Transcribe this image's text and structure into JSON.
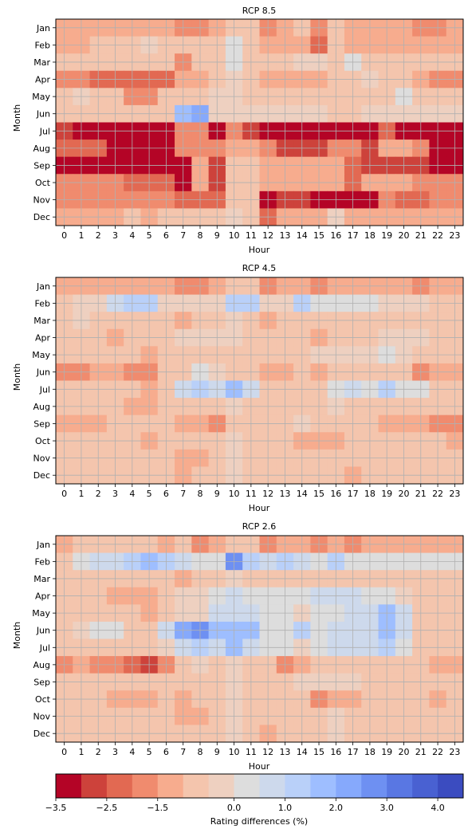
{
  "chart_data": [
    {
      "type": "heatmap",
      "title": "RCP 8.5",
      "xlabel": "Hour",
      "ylabel": "Month",
      "x": [
        "0",
        "1",
        "2",
        "3",
        "4",
        "5",
        "6",
        "7",
        "8",
        "9",
        "10",
        "11",
        "12",
        "13",
        "14",
        "15",
        "16",
        "17",
        "18",
        "19",
        "20",
        "21",
        "22",
        "23"
      ],
      "y": [
        "Jan",
        "Feb",
        "Mar",
        "Apr",
        "May",
        "Jun",
        "Jul",
        "Aug",
        "Sep",
        "Oct",
        "Nov",
        "Dec"
      ],
      "grid": true,
      "values": [
        [
          -1.5,
          -1.5,
          -1.5,
          -1.5,
          -1.5,
          -1.5,
          -1.5,
          -2.0,
          -2.0,
          -1.5,
          -1.0,
          -1.0,
          -2.0,
          -1.5,
          -1.0,
          -2.0,
          -1.0,
          -1.5,
          -1.5,
          -1.5,
          -1.5,
          -2.0,
          -2.0,
          -1.5
        ],
        [
          -1.5,
          -1.5,
          -1.0,
          -1.0,
          -1.0,
          -0.5,
          -1.0,
          -1.0,
          -1.0,
          -1.0,
          0.0,
          -1.0,
          -1.5,
          -1.5,
          -1.5,
          -2.5,
          -1.0,
          -1.5,
          -1.5,
          -1.5,
          -1.5,
          -1.5,
          -1.5,
          -1.5
        ],
        [
          -1.0,
          -1.0,
          -1.0,
          -1.0,
          -1.0,
          -1.0,
          -1.0,
          -2.0,
          -1.0,
          -1.0,
          0.0,
          -1.0,
          -1.0,
          -1.0,
          -0.5,
          -0.5,
          -1.0,
          0.0,
          -1.0,
          -1.0,
          -1.0,
          -1.0,
          -1.0,
          -1.0
        ],
        [
          -2.0,
          -2.0,
          -2.5,
          -2.5,
          -2.5,
          -2.5,
          -2.5,
          -1.5,
          -1.5,
          -1.0,
          -0.5,
          -1.0,
          -1.5,
          -1.5,
          -1.5,
          -1.5,
          -1.0,
          -1.0,
          -0.5,
          -1.0,
          -1.0,
          -1.5,
          -2.0,
          -2.0
        ],
        [
          -1.0,
          -0.5,
          -1.0,
          -1.0,
          -2.0,
          -2.0,
          -1.0,
          -1.0,
          -1.0,
          -0.5,
          -0.5,
          -1.0,
          -1.0,
          -1.0,
          -1.0,
          -1.0,
          -1.0,
          -1.0,
          -1.0,
          -1.0,
          0.0,
          -1.0,
          -1.0,
          -1.0
        ],
        [
          -1.0,
          -1.0,
          -1.0,
          -1.0,
          -1.0,
          -1.0,
          -1.0,
          1.5,
          2.0,
          -0.5,
          -0.5,
          -0.5,
          -0.5,
          -0.5,
          -0.5,
          -0.5,
          -1.0,
          -1.0,
          -0.5,
          -0.5,
          -0.5,
          -0.5,
          -0.5,
          -0.5
        ],
        [
          -3.0,
          -3.5,
          -3.5,
          -3.5,
          -3.5,
          -3.5,
          -3.5,
          -2.0,
          -2.0,
          -3.5,
          -2.0,
          -3.0,
          -3.5,
          -3.5,
          -3.5,
          -3.5,
          -3.5,
          -3.5,
          -3.5,
          -2.5,
          -3.5,
          -3.5,
          -3.5,
          -3.5
        ],
        [
          -2.5,
          -2.5,
          -2.5,
          -3.5,
          -3.5,
          -3.5,
          -3.5,
          -2.0,
          -2.0,
          -2.0,
          -1.5,
          -1.5,
          -2.0,
          -3.0,
          -3.0,
          -3.0,
          -2.0,
          -2.0,
          -3.0,
          -1.5,
          -1.5,
          -2.0,
          -3.5,
          -3.5
        ],
        [
          -3.5,
          -3.5,
          -3.5,
          -3.5,
          -3.5,
          -3.5,
          -3.5,
          -3.5,
          -1.5,
          -3.0,
          -1.0,
          -1.0,
          -1.5,
          -1.5,
          -1.5,
          -1.5,
          -1.5,
          -2.5,
          -3.0,
          -3.0,
          -3.0,
          -3.0,
          -3.5,
          -3.5
        ],
        [
          -2.0,
          -2.0,
          -2.0,
          -2.0,
          -2.5,
          -2.5,
          -2.5,
          -3.5,
          -1.5,
          -3.0,
          -1.0,
          -1.0,
          -1.5,
          -1.5,
          -1.5,
          -1.5,
          -1.5,
          -2.5,
          -1.5,
          -1.5,
          -1.5,
          -2.0,
          -2.0,
          -2.0
        ],
        [
          -2.0,
          -2.0,
          -2.0,
          -2.0,
          -2.0,
          -2.0,
          -2.0,
          -2.5,
          -2.5,
          -2.5,
          -1.0,
          -1.0,
          -3.5,
          -3.0,
          -3.0,
          -3.5,
          -3.5,
          -3.5,
          -3.5,
          -2.0,
          -2.5,
          -2.5,
          -2.0,
          -2.0
        ],
        [
          -1.5,
          -1.5,
          -1.5,
          -1.5,
          -1.0,
          -1.5,
          -1.0,
          -1.0,
          -1.0,
          -1.0,
          -0.5,
          -1.0,
          -2.5,
          -1.5,
          -1.5,
          -1.5,
          -0.5,
          -1.5,
          -1.5,
          -1.5,
          -1.5,
          -1.5,
          -1.5,
          -1.5
        ]
      ]
    },
    {
      "type": "heatmap",
      "title": "RCP 4.5",
      "xlabel": "Hour",
      "ylabel": "Month",
      "x": [
        "0",
        "1",
        "2",
        "3",
        "4",
        "5",
        "6",
        "7",
        "8",
        "9",
        "10",
        "11",
        "12",
        "13",
        "14",
        "15",
        "16",
        "17",
        "18",
        "19",
        "20",
        "21",
        "22",
        "23"
      ],
      "y": [
        "Jan",
        "Feb",
        "Mar",
        "Apr",
        "May",
        "Jun",
        "Jul",
        "Aug",
        "Sep",
        "Oct",
        "Nov",
        "Dec"
      ],
      "grid": true,
      "values": [
        [
          -1.5,
          -1.5,
          -1.5,
          -1.5,
          -1.5,
          -1.5,
          -1.5,
          -2.0,
          -2.0,
          -1.5,
          -1.0,
          -1.0,
          -2.0,
          -1.5,
          -1.5,
          -2.0,
          -1.5,
          -1.5,
          -1.5,
          -1.5,
          -1.5,
          -2.0,
          -1.5,
          -1.5
        ],
        [
          -1.0,
          -0.5,
          -0.5,
          0.5,
          1.0,
          1.0,
          -0.5,
          -0.5,
          -0.5,
          -0.5,
          1.0,
          1.0,
          -0.5,
          -0.5,
          1.0,
          0.0,
          0.0,
          0.0,
          0.0,
          -0.5,
          -0.5,
          -0.5,
          -1.0,
          -1.0
        ],
        [
          -1.0,
          -0.5,
          -1.0,
          -1.0,
          -1.0,
          -1.0,
          -1.0,
          -1.5,
          -1.0,
          -1.0,
          -0.5,
          -1.0,
          -1.5,
          -1.0,
          -1.0,
          -1.0,
          -1.0,
          -1.0,
          -1.0,
          -1.0,
          -1.0,
          -1.0,
          -1.0,
          -1.0
        ],
        [
          -1.0,
          -1.0,
          -1.0,
          -1.5,
          -1.0,
          -1.0,
          -1.0,
          -0.5,
          -0.5,
          -0.5,
          -0.5,
          -1.0,
          -1.0,
          -1.0,
          -1.0,
          -1.5,
          -1.0,
          -1.0,
          -1.0,
          -0.5,
          -0.5,
          -0.5,
          -1.0,
          -1.0
        ],
        [
          -1.0,
          -1.0,
          -1.0,
          -1.0,
          -1.0,
          -1.5,
          -1.0,
          -1.0,
          -1.0,
          -1.0,
          -1.0,
          -1.0,
          -1.0,
          -1.0,
          -1.0,
          -0.5,
          -0.5,
          -0.5,
          -0.5,
          0.0,
          -0.5,
          -1.0,
          -1.0,
          -1.0
        ],
        [
          -2.0,
          -2.0,
          -1.5,
          -1.5,
          -2.0,
          -2.0,
          -1.0,
          -1.0,
          0.0,
          -0.5,
          -1.0,
          -1.0,
          -1.5,
          -1.5,
          -1.0,
          -1.5,
          -1.0,
          -1.0,
          -1.0,
          -1.0,
          -1.0,
          -2.0,
          -1.5,
          -1.5
        ],
        [
          -1.0,
          -1.0,
          -1.0,
          -1.0,
          -1.0,
          -1.5,
          -1.0,
          0.5,
          1.0,
          0.5,
          1.5,
          0.5,
          -1.0,
          -1.0,
          -1.0,
          -1.0,
          0.0,
          0.5,
          0.0,
          1.0,
          0.0,
          0.0,
          -1.0,
          -1.0
        ],
        [
          -1.0,
          -1.0,
          -1.0,
          -1.0,
          -1.5,
          -1.5,
          -1.0,
          -1.0,
          -1.0,
          -1.0,
          -0.5,
          -1.0,
          -1.0,
          -1.0,
          -1.0,
          -1.0,
          -0.5,
          -1.0,
          -1.0,
          -1.0,
          -1.0,
          -1.0,
          -1.0,
          -1.0
        ],
        [
          -1.5,
          -1.5,
          -1.5,
          -1.0,
          -1.0,
          -1.0,
          -1.0,
          -1.5,
          -1.5,
          -2.0,
          -1.0,
          -1.0,
          -1.0,
          -1.0,
          -0.5,
          -1.0,
          -1.0,
          -1.0,
          -1.0,
          -1.5,
          -1.5,
          -1.5,
          -2.0,
          -2.0
        ],
        [
          -1.0,
          -1.0,
          -1.0,
          -1.0,
          -1.0,
          -1.5,
          -1.0,
          -1.0,
          -1.0,
          -1.0,
          -0.5,
          -1.0,
          -1.0,
          -1.0,
          -1.5,
          -1.5,
          -1.5,
          -1.0,
          -1.0,
          -1.0,
          -1.0,
          -1.0,
          -1.0,
          -1.5
        ],
        [
          -1.0,
          -1.0,
          -1.0,
          -1.0,
          -1.0,
          -1.0,
          -1.0,
          -1.5,
          -1.5,
          -1.0,
          -0.5,
          -1.0,
          -1.0,
          -1.0,
          -1.0,
          -1.0,
          -1.0,
          -1.0,
          -1.0,
          -1.0,
          -1.0,
          -1.0,
          -1.0,
          -1.0
        ],
        [
          -1.0,
          -1.0,
          -1.0,
          -1.0,
          -1.0,
          -1.0,
          -1.0,
          -1.5,
          -1.0,
          -1.0,
          -0.5,
          -1.0,
          -1.0,
          -1.0,
          -1.0,
          -1.0,
          -1.0,
          -1.5,
          -1.0,
          -1.0,
          -1.0,
          -1.0,
          -1.0,
          -1.0
        ]
      ]
    },
    {
      "type": "heatmap",
      "title": "RCP 2.6",
      "xlabel": "Hour",
      "ylabel": "Month",
      "x": [
        "0",
        "1",
        "2",
        "3",
        "4",
        "5",
        "6",
        "7",
        "8",
        "9",
        "10",
        "11",
        "12",
        "13",
        "14",
        "15",
        "16",
        "17",
        "18",
        "19",
        "20",
        "21",
        "22",
        "23"
      ],
      "y": [
        "Jan",
        "Feb",
        "Mar",
        "Apr",
        "May",
        "Jun",
        "Jul",
        "Aug",
        "Sep",
        "Oct",
        "Nov",
        "Dec"
      ],
      "grid": true,
      "values": [
        [
          -1.5,
          -1.0,
          -1.0,
          -1.0,
          -1.0,
          -1.0,
          -1.5,
          -1.0,
          -2.0,
          -1.5,
          -1.0,
          -1.0,
          -2.0,
          -1.5,
          -1.5,
          -2.0,
          -1.5,
          -2.0,
          -1.5,
          -1.5,
          -1.5,
          -1.5,
          -1.5,
          -1.5
        ],
        [
          -1.0,
          0.0,
          0.5,
          0.5,
          1.0,
          1.5,
          1.0,
          0.5,
          0.0,
          0.0,
          2.5,
          1.0,
          0.5,
          1.0,
          0.5,
          0.0,
          1.0,
          0.0,
          0.0,
          0.0,
          0.0,
          0.0,
          0.0,
          0.0
        ],
        [
          -1.0,
          -1.0,
          -1.0,
          -1.0,
          -1.0,
          -1.0,
          -1.0,
          -1.5,
          -1.0,
          -1.0,
          -0.5,
          -1.0,
          -1.0,
          -1.0,
          -1.0,
          -1.0,
          -1.0,
          -1.0,
          -1.0,
          -1.0,
          -1.0,
          -1.0,
          -1.0,
          -1.0
        ],
        [
          -1.0,
          -1.0,
          -1.0,
          -1.5,
          -1.5,
          -1.5,
          -1.0,
          -0.5,
          -0.5,
          0.0,
          0.5,
          0.0,
          0.0,
          0.0,
          0.0,
          0.5,
          0.5,
          0.5,
          0.0,
          0.0,
          -0.5,
          -1.0,
          -1.0,
          -1.0
        ],
        [
          -1.0,
          -1.0,
          -1.0,
          -1.0,
          -1.0,
          -1.5,
          -1.0,
          -0.5,
          -0.5,
          0.5,
          0.5,
          0.5,
          0.0,
          0.0,
          -0.5,
          0.0,
          0.0,
          0.5,
          0.5,
          1.5,
          0.5,
          -1.0,
          -1.0,
          -1.0
        ],
        [
          -1.0,
          -0.5,
          0.0,
          0.0,
          -1.0,
          -1.0,
          0.5,
          2.0,
          2.5,
          1.5,
          1.5,
          1.5,
          0.0,
          0.0,
          1.0,
          0.0,
          0.5,
          0.5,
          0.5,
          1.5,
          0.5,
          -1.0,
          -1.0,
          -1.0
        ],
        [
          -1.0,
          -1.0,
          -1.0,
          -1.0,
          -1.0,
          -1.0,
          -0.5,
          0.5,
          1.0,
          0.5,
          1.5,
          0.5,
          0.0,
          0.0,
          -0.5,
          0.0,
          0.5,
          0.5,
          0.5,
          1.0,
          0.0,
          -1.0,
          -1.0,
          -1.0
        ],
        [
          -2.0,
          -1.5,
          -2.0,
          -2.0,
          -2.5,
          -3.0,
          -2.0,
          -1.0,
          -0.5,
          -1.0,
          -0.5,
          -1.0,
          -1.0,
          -2.0,
          -1.5,
          -1.0,
          -1.0,
          -1.0,
          -1.0,
          -1.0,
          -1.0,
          -1.0,
          -1.5,
          -1.5
        ],
        [
          -1.0,
          -1.0,
          -1.0,
          -1.0,
          -1.0,
          -1.0,
          -1.0,
          -1.0,
          -1.0,
          -1.0,
          -0.5,
          -1.0,
          -1.0,
          -1.0,
          -0.5,
          -0.5,
          -0.5,
          -0.5,
          -1.0,
          -1.0,
          -1.0,
          -1.0,
          -1.0,
          -1.0
        ],
        [
          -1.0,
          -1.0,
          -1.0,
          -1.5,
          -1.5,
          -1.5,
          -1.0,
          -1.5,
          -1.0,
          -1.0,
          -0.5,
          -1.0,
          -1.0,
          -1.0,
          -1.0,
          -2.0,
          -1.5,
          -1.5,
          -1.0,
          -1.0,
          -1.0,
          -1.0,
          -1.5,
          -1.0
        ],
        [
          -1.0,
          -1.0,
          -1.0,
          -1.0,
          -1.0,
          -1.0,
          -1.0,
          -1.5,
          -1.5,
          -1.0,
          -0.5,
          -1.0,
          -1.0,
          -1.0,
          -1.0,
          -1.0,
          -0.5,
          -1.0,
          -1.0,
          -1.0,
          -1.0,
          -1.0,
          -1.0,
          -1.0
        ],
        [
          -1.0,
          -1.0,
          -1.0,
          -1.0,
          -1.0,
          -1.0,
          -1.0,
          -1.0,
          -1.0,
          -1.0,
          -0.5,
          -1.0,
          -1.5,
          -1.0,
          -1.0,
          -1.0,
          -0.5,
          -1.0,
          -1.0,
          -1.0,
          -1.0,
          -1.0,
          -1.0,
          -1.0
        ]
      ]
    }
  ],
  "colorbar": {
    "label": "Rating differences (%)",
    "range": [
      -3.5,
      4.5
    ],
    "step": 0.5,
    "ticks": [
      "−3.5",
      "−2.5",
      "−1.5",
      "0.0",
      "1.0",
      "2.0",
      "3.0",
      "4.0"
    ],
    "tick_values": [
      -3.5,
      -2.5,
      -1.5,
      0.0,
      1.0,
      2.0,
      3.0,
      4.0
    ],
    "colors": [
      "#b40426",
      "#cd423b",
      "#e26952",
      "#f08b6e",
      "#f7ac8e",
      "#f4c5ad",
      "#eed0c0",
      "#dddddd",
      "#cdd9ec",
      "#b9d0f9",
      "#9ebeff",
      "#86a9fc",
      "#6e90f2",
      "#5977e3",
      "#4961d2",
      "#3b4cc0"
    ]
  }
}
